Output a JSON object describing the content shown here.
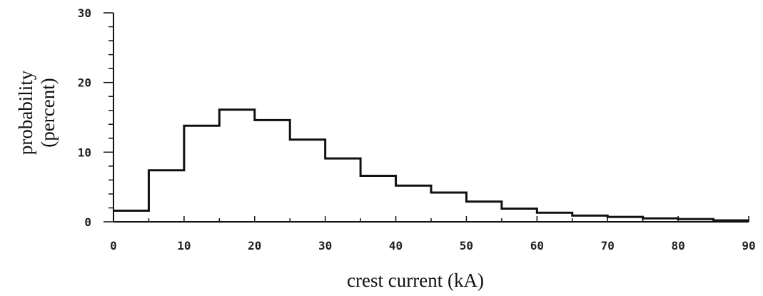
{
  "chart_data": {
    "type": "bar",
    "style": "step-histogram",
    "title": "",
    "xlabel": "crest current (kA)",
    "ylabel_line1": "probability",
    "ylabel_line2": "(percent)",
    "xlim": [
      0,
      90
    ],
    "ylim": [
      0,
      30
    ],
    "x_ticks": [
      0,
      10,
      20,
      30,
      40,
      50,
      60,
      70,
      80,
      90
    ],
    "y_ticks": [
      0,
      10,
      20,
      30
    ],
    "bin_width": 5,
    "bin_starts": [
      0,
      5,
      10,
      15,
      20,
      25,
      30,
      35,
      40,
      45,
      50,
      55,
      60,
      65,
      70,
      75,
      80,
      85
    ],
    "values": [
      1.6,
      7.4,
      13.8,
      16.1,
      14.6,
      11.8,
      9.1,
      6.6,
      5.2,
      4.2,
      2.9,
      1.9,
      1.3,
      0.9,
      0.7,
      0.5,
      0.4,
      0.2
    ],
    "grid": false,
    "line_color": "#111111"
  }
}
